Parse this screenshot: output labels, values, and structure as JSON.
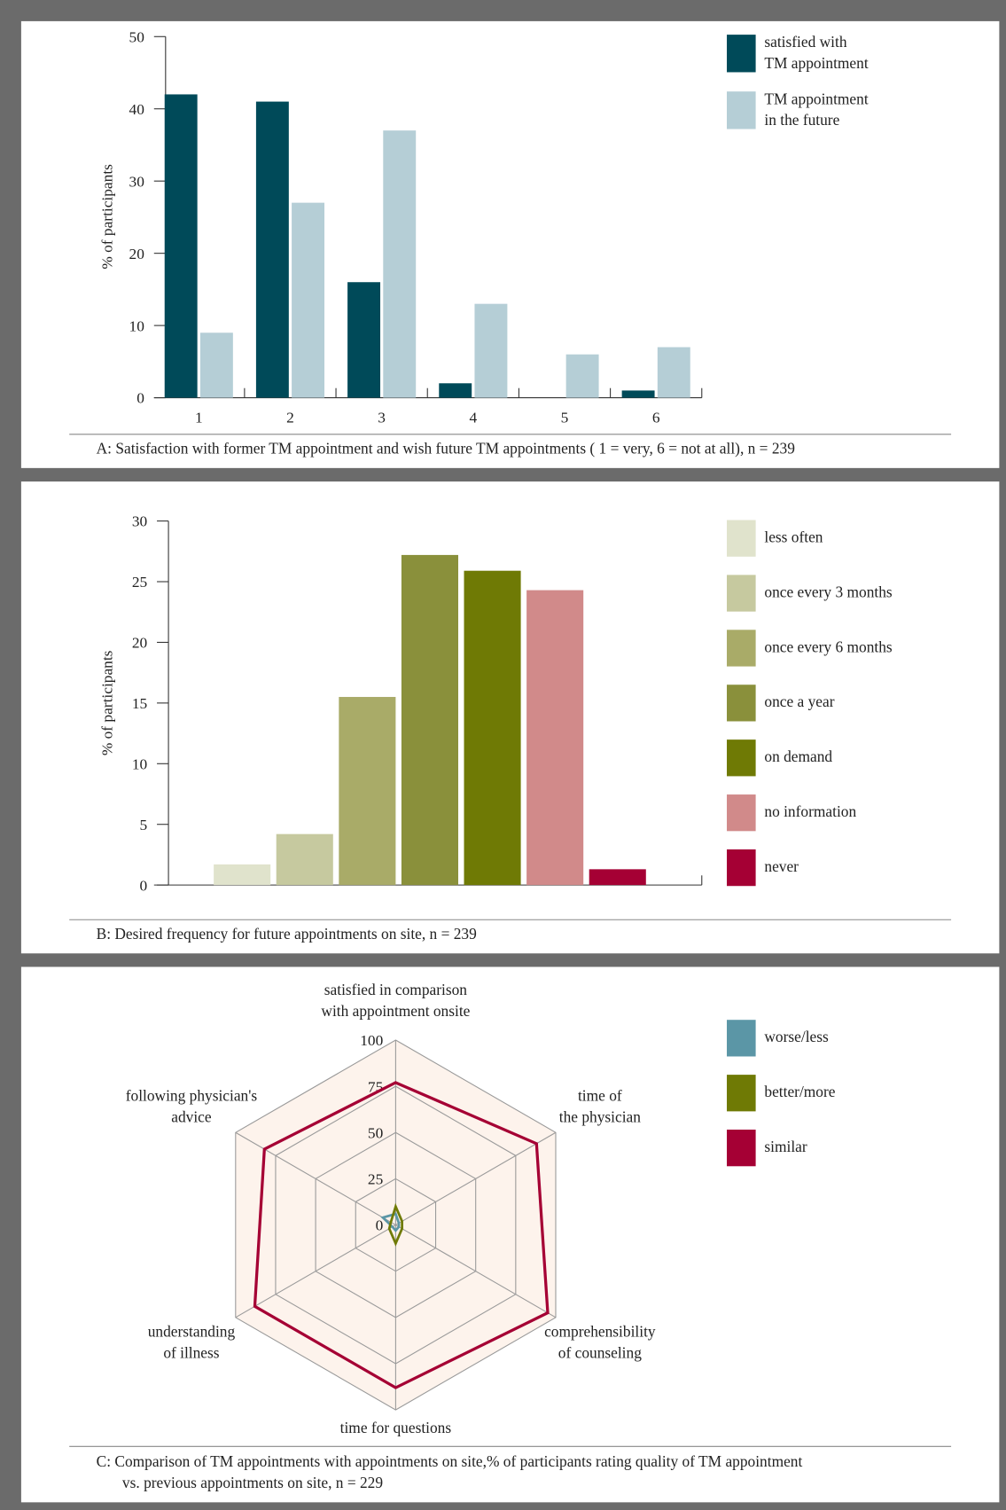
{
  "chart_data": [
    {
      "type": "bar",
      "caption": "A:  Satisfaction with former TM appointment and wish future TM appointments ( 1 = very, 6 = not at all), n = 239",
      "ylabel": "% of participants",
      "categories": [
        "1",
        "2",
        "3",
        "4",
        "5",
        "6"
      ],
      "series": [
        {
          "name": "satisfied with\nTM appointment",
          "color": "#004a59",
          "values": [
            42,
            41,
            16,
            2,
            0,
            1
          ]
        },
        {
          "name": "TM appointment\nin the future",
          "color": "#b5ced6",
          "values": [
            9,
            27,
            37,
            13,
            6,
            7
          ]
        }
      ],
      "ylim": [
        0,
        50
      ],
      "yticks": [
        0,
        10,
        20,
        30,
        40,
        50
      ],
      "legend": "top-right"
    },
    {
      "type": "bar",
      "caption": "B:  Desired frequency for future appointments on site, n = 239",
      "ylabel": "% of participants",
      "categories": [
        "less often",
        "once every 3 months",
        "once every 6 months",
        "once a year",
        "on demand",
        "no information",
        "never"
      ],
      "values": [
        1.7,
        4.2,
        15.5,
        27.2,
        25.9,
        24.3,
        1.3
      ],
      "colors": [
        "#e0e3cc",
        "#c6c99f",
        "#a9ab68",
        "#8a903b",
        "#6f7a05",
        "#d18a8a",
        "#a50034"
      ],
      "ylim": [
        0,
        30
      ],
      "yticks": [
        0,
        5,
        10,
        15,
        20,
        25,
        30
      ],
      "legend": "top-right"
    },
    {
      "type": "radar",
      "caption": "C:  Comparison of TM appointments with appointments on site,% of participants rating quality of TM appointment\nvs. previous appointments on site, n = 229",
      "categories": [
        "satisfied in comparison\nwith appointment onsite",
        "time of\nthe physician",
        "comprehensibility\nof counseling",
        "time for questions",
        "understanding\nof illness",
        "following physician's\nadvice"
      ],
      "series": [
        {
          "name": "worse/less",
          "color": "#5b96a6",
          "values": [
            6,
            2,
            2,
            3,
            2,
            8
          ]
        },
        {
          "name": "better/more",
          "color": "#6f7a05",
          "values": [
            10,
            4,
            4,
            10,
            4,
            3
          ]
        },
        {
          "name": "similar",
          "color": "#a50034",
          "values": [
            77,
            88,
            95,
            88,
            88,
            82
          ]
        }
      ],
      "rlim": [
        0,
        100
      ],
      "rticks": [
        0,
        25,
        50,
        75,
        100
      ],
      "legend": "top-right"
    }
  ]
}
